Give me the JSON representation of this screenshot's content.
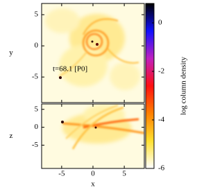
{
  "chart_data": [
    {
      "type": "render",
      "ylabel": "y",
      "annotation": "t=68.1 [P0]",
      "xlim": [
        -8.2,
        8.2
      ],
      "ylim": [
        -9.1,
        6.8
      ],
      "xticks": [
        -5,
        0,
        5
      ],
      "yticks": [
        -5,
        0,
        5
      ]
    },
    {
      "type": "render",
      "xlabel": "x",
      "ylabel": "z",
      "xlim": [
        -8.2,
        8.2
      ],
      "ylim": [
        -11.5,
        6.5
      ],
      "xticks": [
        -5,
        0,
        5
      ],
      "yticks": [
        -5,
        0,
        5
      ]
    },
    {
      "type": "colorbar",
      "label": "log column density",
      "ylim": [
        -6,
        0.8
      ],
      "yticks": [
        0,
        -2,
        -4,
        -6
      ],
      "colors": [
        "#000000",
        "#1010ff",
        "#c020c0",
        "#ff1010",
        "#ff8000",
        "#ffe030",
        "#ffffff"
      ]
    }
  ]
}
